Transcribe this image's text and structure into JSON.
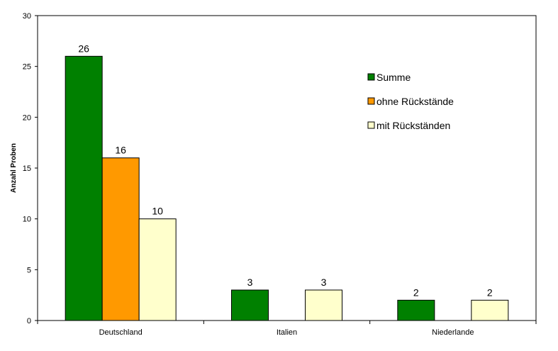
{
  "chart_data": {
    "type": "bar",
    "categories": [
      "Deutschland",
      "Italien",
      "Niederlande"
    ],
    "series": [
      {
        "name": "Summe",
        "color": "#008000",
        "values": [
          26,
          3,
          2
        ]
      },
      {
        "name": "ohne Rückstände",
        "color": "#FF9900",
        "values": [
          16,
          0,
          0
        ]
      },
      {
        "name": "mit Rückständen",
        "color": "#FFFFCC",
        "values": [
          10,
          3,
          2
        ]
      }
    ],
    "data_labels": [
      [
        "26",
        "3",
        "2"
      ],
      [
        "16",
        "",
        ""
      ],
      [
        "10",
        "3",
        "2"
      ]
    ],
    "title": "",
    "xlabel": "",
    "ylabel": "Anzahl Proben",
    "ylim": [
      0,
      30
    ],
    "yticks": [
      0,
      5,
      10,
      15,
      20,
      25,
      30
    ],
    "grid": false,
    "legend_position": "top-right"
  }
}
